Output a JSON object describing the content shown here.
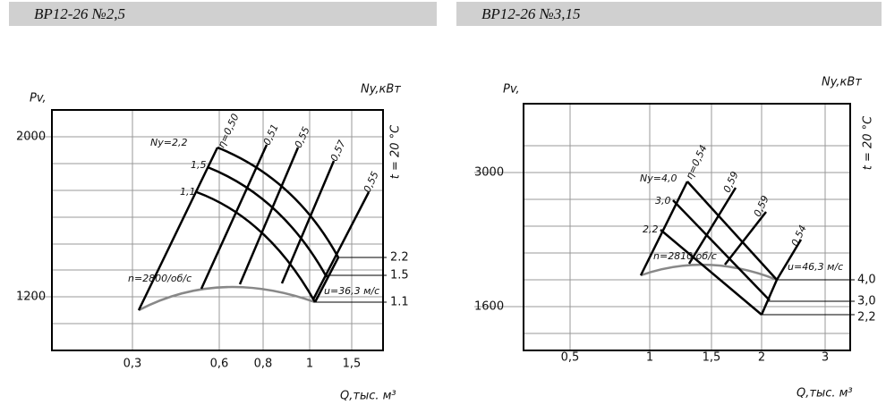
{
  "panels": [
    {
      "title": "ВР12-26 №2,5",
      "y_label": "Pv,",
      "power_label": "Ny,кВт",
      "temperature_label": "t = 20 °C",
      "x_label": "Q,тыс. м³",
      "yticks": [
        "2000",
        "1200"
      ],
      "xticks": [
        "0,3",
        "0,6",
        "0,8",
        "1",
        "1,5"
      ],
      "curve_labels": [
        "Ny=2,2",
        "1,5",
        "1,1"
      ],
      "efficiency_labels": [
        "η=0,50",
        "0,51",
        "0,55",
        "0,57",
        "0,55"
      ],
      "speed_label": "n=2800/об/с",
      "velocity_label": "u=36,3 м/с",
      "power_ticks": [
        "2.2",
        "1.5",
        "1.1"
      ]
    },
    {
      "title": "ВР12-26 №3,15",
      "y_label": "Pv,",
      "power_label": "Ny,кВт",
      "temperature_label": "t = 20 °C",
      "x_label": "Q,тыс. м³",
      "yticks": [
        "3000",
        "1600"
      ],
      "xticks": [
        "0,5",
        "1",
        "1,5",
        "2",
        "3"
      ],
      "curve_labels": [
        "Ny=4,0",
        "3,0",
        "2,2"
      ],
      "efficiency_labels": [
        "η=0,54",
        "0,59",
        "0,59",
        "0,54"
      ],
      "speed_label": "n=2810 об/с",
      "velocity_label": "u=46,3 м/с",
      "power_ticks": [
        "4,0",
        "3,0",
        "2,2"
      ]
    }
  ]
}
